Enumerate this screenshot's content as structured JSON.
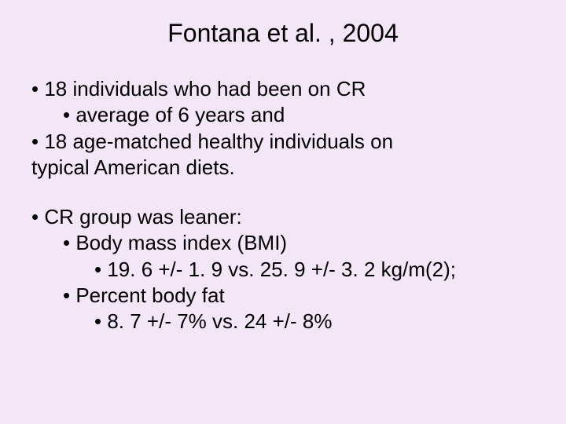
{
  "background_color": "#f2e6f7",
  "text_color": "#000000",
  "font_family": "Arial",
  "title_fontsize": 32,
  "body_fontsize": 26,
  "title": "Fontana et al. , 2004",
  "bullets_block1": {
    "line1": "• 18 individuals who had been on CR",
    "line2": "• average of 6 years and",
    "line3": "• 18 age-matched healthy individuals on",
    "line3_cont": "typical American diets."
  },
  "bullets_block2": {
    "line1": "• CR group was leaner:",
    "line2": "• Body mass index (BMI)",
    "line3": "• 19. 6 +/- 1. 9 vs. 25. 9 +/- 3. 2 kg/m(2);",
    "line4": "• Percent body fat",
    "line5": "• 8. 7 +/- 7% vs. 24 +/- 8%"
  }
}
